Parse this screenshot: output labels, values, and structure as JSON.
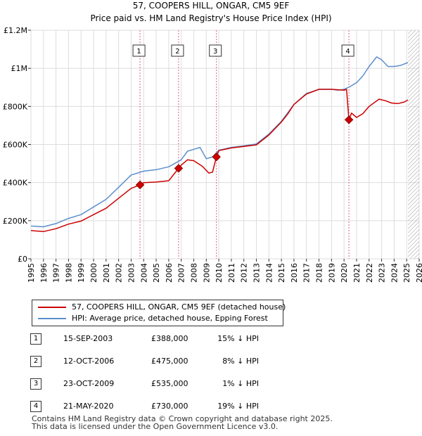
{
  "title_line1": "57, COOPERS HILL, ONGAR, CM5 9EF",
  "title_line2": "Price paid vs. HM Land Registry's House Price Index (HPI)",
  "colors": {
    "property": "#cc0000",
    "hpi": "#5b8fcc",
    "grid": "#dddddd",
    "marker_line": "#e06080",
    "hatch": "#999999"
  },
  "chart_data": {
    "type": "line",
    "title": "57, COOPERS HILL, ONGAR, CM5 9EF",
    "subtitle": "Price paid vs. HM Land Registry's House Price Index (HPI)",
    "xlim": [
      1995,
      2026
    ],
    "ylim": [
      0,
      1200000
    ],
    "x_ticks": [
      1995,
      1996,
      1997,
      1998,
      1999,
      2000,
      2001,
      2002,
      2003,
      2004,
      2005,
      2006,
      2007,
      2008,
      2009,
      2010,
      2011,
      2012,
      2013,
      2014,
      2015,
      2016,
      2017,
      2018,
      2019,
      2020,
      2021,
      2022,
      2023,
      2024,
      2025,
      2026
    ],
    "y_ticks": [
      {
        "value": 0,
        "label": "£0"
      },
      {
        "value": 200000,
        "label": "£200K"
      },
      {
        "value": 400000,
        "label": "£400K"
      },
      {
        "value": 600000,
        "label": "£600K"
      },
      {
        "value": 800000,
        "label": "£800K"
      },
      {
        "value": 1000000,
        "label": "£1M"
      },
      {
        "value": 1200000,
        "label": "£1.2M"
      }
    ],
    "series": [
      {
        "name": "57, COOPERS HILL, ONGAR, CM5 9EF (detached house)",
        "color": "#cc0000",
        "points": [
          [
            1995,
            148000
          ],
          [
            1996,
            143000
          ],
          [
            1997,
            158000
          ],
          [
            1998,
            182000
          ],
          [
            1999,
            198000
          ],
          [
            2000,
            232000
          ],
          [
            2001,
            265000
          ],
          [
            2002,
            318000
          ],
          [
            2003,
            370000
          ],
          [
            2003.71,
            388000
          ],
          [
            2004,
            400000
          ],
          [
            2005,
            403000
          ],
          [
            2006,
            410000
          ],
          [
            2006.79,
            475000
          ],
          [
            2007,
            492000
          ],
          [
            2007.5,
            520000
          ],
          [
            2008,
            515000
          ],
          [
            2008.7,
            485000
          ],
          [
            2009.2,
            450000
          ],
          [
            2009.5,
            455000
          ],
          [
            2009.81,
            535000
          ],
          [
            2010,
            568000
          ],
          [
            2011,
            582000
          ],
          [
            2012,
            590000
          ],
          [
            2013,
            598000
          ],
          [
            2014,
            650000
          ],
          [
            2015,
            718000
          ],
          [
            2015.5,
            760000
          ],
          [
            2016,
            810000
          ],
          [
            2017,
            865000
          ],
          [
            2018,
            890000
          ],
          [
            2019,
            890000
          ],
          [
            2020,
            885000
          ],
          [
            2020.2,
            890000
          ],
          [
            2020.39,
            730000
          ],
          [
            2020.6,
            765000
          ],
          [
            2021,
            742000
          ],
          [
            2021.5,
            762000
          ],
          [
            2022,
            800000
          ],
          [
            2022.8,
            838000
          ],
          [
            2023.3,
            830000
          ],
          [
            2023.8,
            818000
          ],
          [
            2024.3,
            815000
          ],
          [
            2024.8,
            823000
          ],
          [
            2025.1,
            834000
          ]
        ]
      },
      {
        "name": "HPI: Average price, detached house, Epping Forest",
        "color": "#5b8fcc",
        "points": [
          [
            1995,
            172000
          ],
          [
            1996,
            168000
          ],
          [
            1997,
            185000
          ],
          [
            1998,
            212000
          ],
          [
            1999,
            232000
          ],
          [
            2000,
            272000
          ],
          [
            2001,
            312000
          ],
          [
            2002,
            375000
          ],
          [
            2003,
            440000
          ],
          [
            2004,
            460000
          ],
          [
            2005,
            468000
          ],
          [
            2006,
            483000
          ],
          [
            2007,
            520000
          ],
          [
            2007.5,
            565000
          ],
          [
            2008,
            575000
          ],
          [
            2008.5,
            585000
          ],
          [
            2009,
            525000
          ],
          [
            2009.5,
            535000
          ],
          [
            2010,
            570000
          ],
          [
            2011,
            585000
          ],
          [
            2012,
            593000
          ],
          [
            2013,
            603000
          ],
          [
            2014,
            655000
          ],
          [
            2015,
            722000
          ],
          [
            2016,
            810000
          ],
          [
            2017,
            868000
          ],
          [
            2018,
            890000
          ],
          [
            2019,
            890000
          ],
          [
            2019.5,
            885000
          ],
          [
            2020,
            890000
          ],
          [
            2020.5,
            905000
          ],
          [
            2021,
            925000
          ],
          [
            2021.5,
            960000
          ],
          [
            2022,
            1010000
          ],
          [
            2022.6,
            1060000
          ],
          [
            2023,
            1045000
          ],
          [
            2023.5,
            1010000
          ],
          [
            2024,
            1010000
          ],
          [
            2024.5,
            1015000
          ],
          [
            2025.1,
            1030000
          ]
        ]
      }
    ],
    "sales": [
      {
        "num": "1",
        "x": 2003.71,
        "price": 388000
      },
      {
        "num": "2",
        "x": 2006.79,
        "price": 475000
      },
      {
        "num": "3",
        "x": 2009.81,
        "price": 535000
      },
      {
        "num": "4",
        "x": 2020.39,
        "price": 730000
      }
    ],
    "hatch_from": 2025.1
  },
  "legend": {
    "property_label": "57, COOPERS HILL, ONGAR, CM5 9EF (detached house)",
    "hpi_label": "HPI: Average price, detached house, Epping Forest"
  },
  "sales_table": [
    {
      "num": "1",
      "date": "15-SEP-2003",
      "price": "£388,000",
      "diff": "15% ↓ HPI"
    },
    {
      "num": "2",
      "date": "12-OCT-2006",
      "price": "£475,000",
      "diff": "8% ↓ HPI"
    },
    {
      "num": "3",
      "date": "23-OCT-2009",
      "price": "£535,000",
      "diff": "1% ↓ HPI"
    },
    {
      "num": "4",
      "date": "21-MAY-2020",
      "price": "£730,000",
      "diff": "19% ↓ HPI"
    }
  ],
  "footer_line1": "Contains HM Land Registry data © Crown copyright and database right 2025.",
  "footer_line2": "This data is licensed under the Open Government Licence v3.0."
}
